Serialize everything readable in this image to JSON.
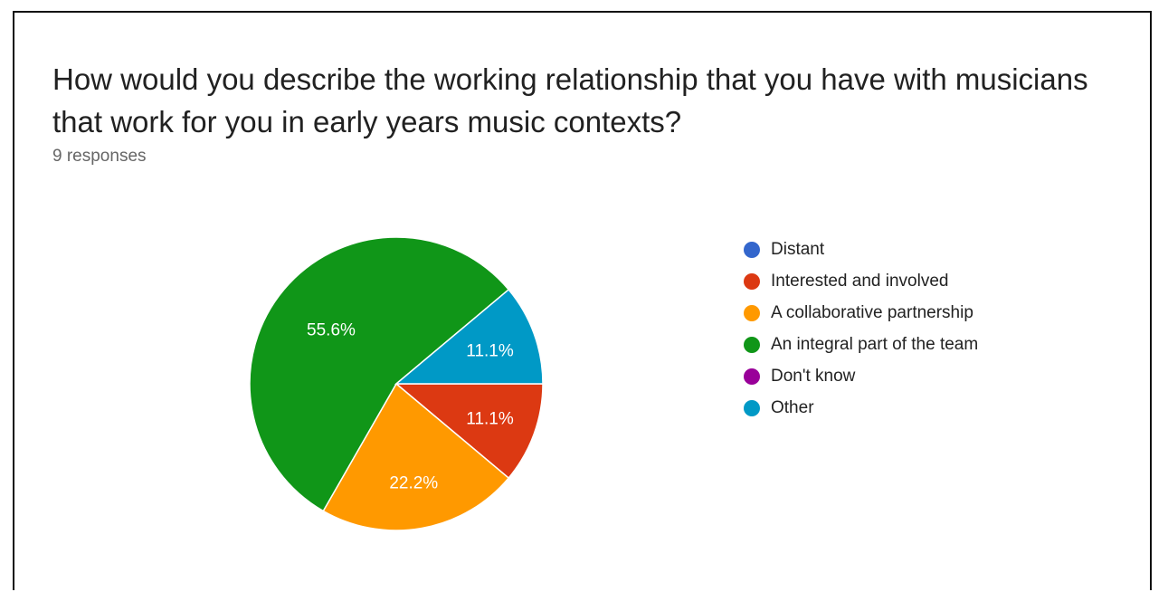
{
  "question": {
    "title": "How would you describe the working relationship that you have with musicians that  work for you in early years music contexts?",
    "responses": "9 responses"
  },
  "chart_data": {
    "type": "pie",
    "title": "How would you describe the working relationship that you have with musicians that  work for you in early years music contexts?",
    "total_responses": 9,
    "legend_position": "right",
    "slices": [
      {
        "label": "Distant",
        "percent": 0,
        "display": "",
        "color": "#3366cc"
      },
      {
        "label": "Interested and involved",
        "percent": 11.1,
        "display": "11.1%",
        "color": "#dc3912"
      },
      {
        "label": "A collaborative partnership",
        "percent": 22.2,
        "display": "22.2%",
        "color": "#ff9900"
      },
      {
        "label": "An integral part of the team",
        "percent": 55.6,
        "display": "55.6%",
        "color": "#109618"
      },
      {
        "label": "Don't know",
        "percent": 0,
        "display": "",
        "color": "#990099"
      },
      {
        "label": "Other",
        "percent": 11.1,
        "display": "11.1%",
        "color": "#0099c6"
      }
    ]
  }
}
